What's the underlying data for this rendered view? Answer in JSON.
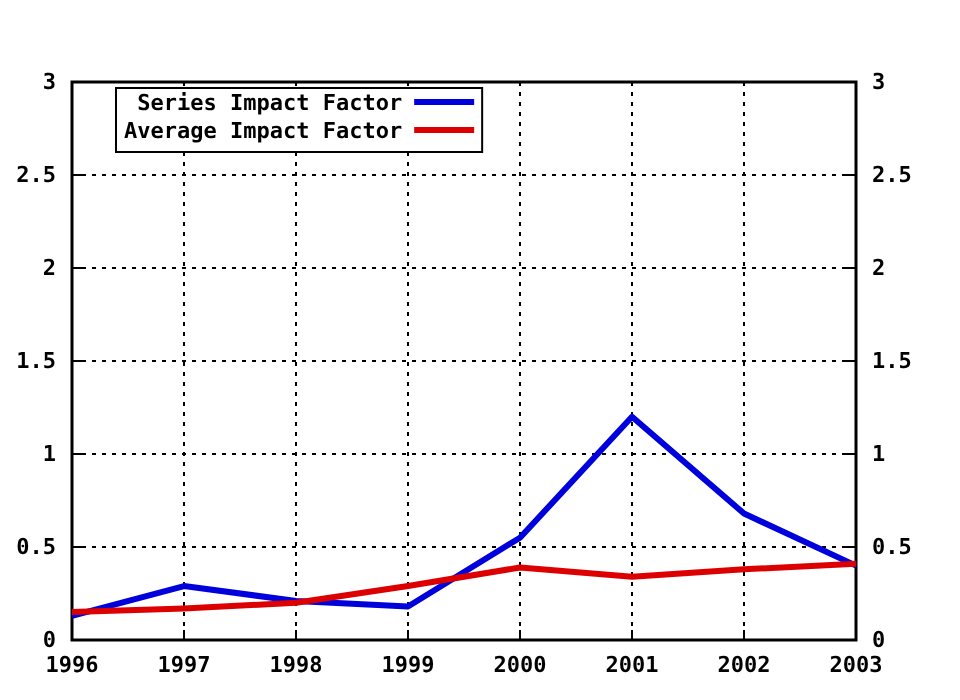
{
  "chart_data": {
    "type": "line",
    "x": [
      1996,
      1997,
      1998,
      1999,
      2000,
      2001,
      2002,
      2003
    ],
    "series": [
      {
        "name": "Series Impact Factor",
        "color": "#0000dd",
        "values": [
          0.13,
          0.29,
          0.21,
          0.18,
          0.55,
          1.2,
          0.68,
          0.4
        ]
      },
      {
        "name": "Average Impact Factor",
        "color": "#dd0000",
        "values": [
          0.15,
          0.17,
          0.2,
          0.29,
          0.39,
          0.34,
          0.38,
          0.41
        ]
      }
    ],
    "xlim": [
      1996,
      2003
    ],
    "xticks": [
      1996,
      1997,
      1998,
      1999,
      2000,
      2001,
      2002,
      2003
    ],
    "ylim": [
      0,
      3
    ],
    "yticks": [
      0,
      0.5,
      1,
      1.5,
      2,
      2.5,
      3
    ],
    "y2lim": [
      0,
      3
    ],
    "y2ticks": [
      0,
      0.5,
      1,
      1.5,
      2,
      2.5,
      3
    ],
    "grid": true,
    "legend": "top left",
    "marker": "none",
    "line_style": "solid"
  }
}
